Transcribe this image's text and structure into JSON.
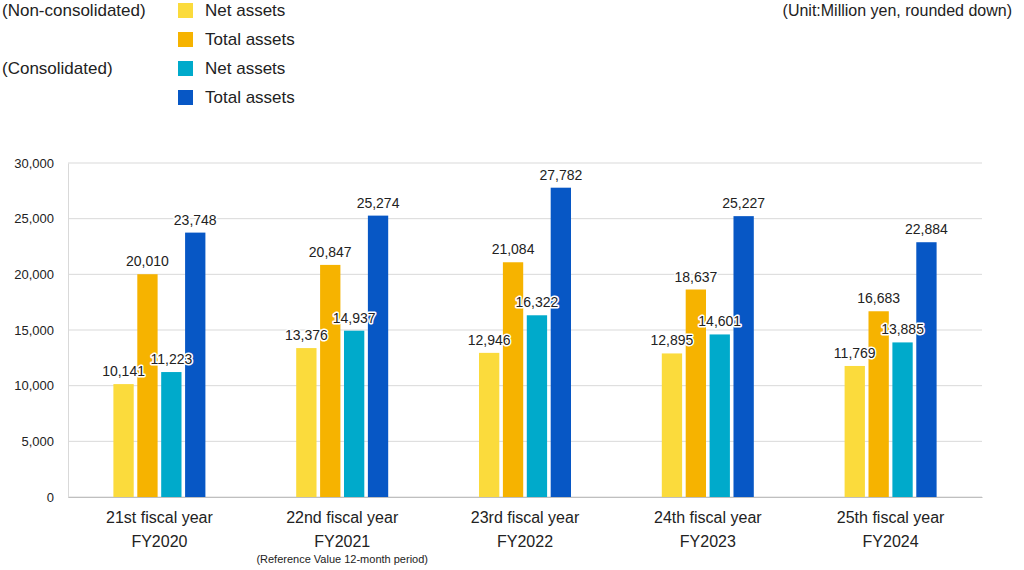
{
  "chart_data": {
    "type": "bar",
    "categories": [
      [
        "21st fiscal year",
        "FY2020"
      ],
      [
        "22nd fiscal year",
        "FY2021"
      ],
      [
        "23rd fiscal year",
        "FY2022"
      ],
      [
        "24th fiscal year",
        "FY2023"
      ],
      [
        "25th fiscal year",
        "FY2024"
      ]
    ],
    "series": [
      {
        "name": "Net assets",
        "group": "(Non-consolidated)",
        "color": "#fbdb3c",
        "values": [
          10141,
          13376,
          12946,
          12895,
          11769
        ],
        "value_labels": [
          "10,141",
          "13,376",
          "12,946",
          "12,895",
          "11,769"
        ]
      },
      {
        "name": "Total assets",
        "group": "(Non-consolidated)",
        "color": "#f6b300",
        "values": [
          20010,
          20847,
          21084,
          18637,
          16683
        ],
        "value_labels": [
          "20,010",
          "20,847",
          "21,084",
          "18,637",
          "16,683"
        ]
      },
      {
        "name": "Net assets",
        "group": "(Consolidated)",
        "color": "#00aacb",
        "values": [
          11223,
          14937,
          16322,
          14601,
          13885
        ],
        "value_labels": [
          "11,223",
          "14,937",
          "16,322",
          "14,601",
          "13,885"
        ]
      },
      {
        "name": "Total assets",
        "group": "(Consolidated)",
        "color": "#0757c5",
        "values": [
          23748,
          25274,
          27782,
          25227,
          22884
        ],
        "value_labels": [
          "23,748",
          "25,274",
          "27,782",
          "25,227",
          "22,884"
        ]
      }
    ],
    "ylim": [
      0,
      30000
    ],
    "yticks": [
      0,
      {
        "value": 5000,
        "label": "5,000"
      },
      {
        "value": 10000,
        "label": "10,000"
      },
      {
        "value": 15000,
        "label": "15,000"
      },
      {
        "value": 20000,
        "label": "20,000"
      },
      {
        "value": 25000,
        "label": "25,000"
      },
      {
        "value": 30000,
        "label": "30,000"
      }
    ],
    "annotations": [
      "(Unit:Million yen, rounded down)",
      "(Reference Value 12-month period)"
    ],
    "grid": true,
    "data_labels": true,
    "legend": "top-left"
  }
}
